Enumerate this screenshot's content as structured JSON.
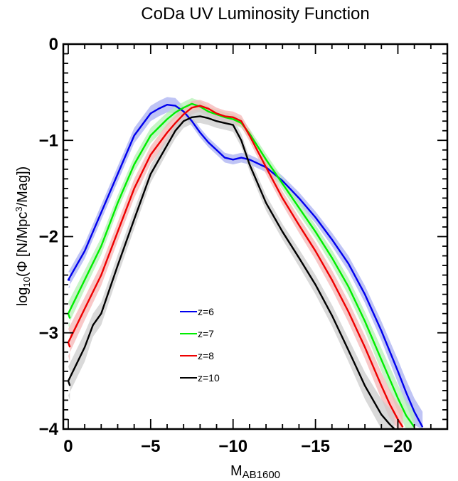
{
  "chart_data": {
    "type": "line",
    "title": "CoDa UV Luminosity Function",
    "xlabel": {
      "base": "M",
      "sub": "AB1600"
    },
    "ylabel": {
      "pre": "log",
      "sub": "10",
      "mid": "(Φ [N/Mpc",
      "sup": "3",
      "post": "/Mag])"
    },
    "xlim": [
      0.3,
      -23
    ],
    "ylim": [
      -4,
      0
    ],
    "x_ticks": [
      0,
      -5,
      -10,
      -15,
      -20
    ],
    "x_tick_labels": [
      "0",
      "−5",
      "−10",
      "−15",
      "−20"
    ],
    "y_ticks": [
      0,
      -1,
      -2,
      -3,
      -4
    ],
    "y_tick_labels": [
      "0",
      "−1",
      "−2",
      "−3",
      "−4"
    ],
    "grid": false,
    "legend_position": "center-left",
    "series": [
      {
        "name": "z=6",
        "color": "#0000ee",
        "band_color": "#aab0f2",
        "x": [
          -0.1,
          0,
          -1,
          -2,
          -3,
          -4,
          -5,
          -5.5,
          -6,
          -6.5,
          -7,
          -7.5,
          -8,
          -8.5,
          -9,
          -9.5,
          -10,
          -10.5,
          -11,
          -12,
          -13,
          -14,
          -15,
          -16,
          -17,
          -18,
          -19,
          -20,
          -20.5,
          -21,
          -21.5
        ],
        "y": [
          -2.45,
          -2.45,
          -2.15,
          -1.75,
          -1.35,
          -0.95,
          -0.72,
          -0.67,
          -0.63,
          -0.64,
          -0.7,
          -0.8,
          -0.92,
          -1.02,
          -1.1,
          -1.18,
          -1.2,
          -1.18,
          -1.2,
          -1.28,
          -1.42,
          -1.6,
          -1.8,
          -2.03,
          -2.28,
          -2.6,
          -2.98,
          -3.4,
          -3.62,
          -3.82,
          -3.98
        ],
        "band": [
          0.08,
          0.08,
          0.08,
          0.08,
          0.08,
          0.08,
          0.08,
          0.08,
          0.08,
          0.08,
          0.05,
          0.05,
          0.05,
          0.05,
          0.05,
          0.05,
          0.05,
          0.05,
          0.05,
          0.05,
          0.05,
          0.06,
          0.06,
          0.07,
          0.08,
          0.09,
          0.1,
          0.12,
          0.13,
          0.14,
          0.16
        ]
      },
      {
        "name": "z=7",
        "color": "#00ee00",
        "band_color": "#b6f0b6",
        "x": [
          -0.1,
          0,
          -1,
          -2,
          -3,
          -4,
          -5,
          -6,
          -6.5,
          -7,
          -7.5,
          -8,
          -8.5,
          -9,
          -9.5,
          -10,
          -10.5,
          -11,
          -12,
          -13,
          -14,
          -15,
          -16,
          -17,
          -18,
          -19,
          -20,
          -20.5,
          -21
        ],
        "y": [
          -2.85,
          -2.8,
          -2.45,
          -2.1,
          -1.65,
          -1.25,
          -0.95,
          -0.78,
          -0.71,
          -0.66,
          -0.62,
          -0.65,
          -0.7,
          -0.73,
          -0.76,
          -0.78,
          -0.82,
          -0.93,
          -1.2,
          -1.45,
          -1.7,
          -1.95,
          -2.22,
          -2.52,
          -2.88,
          -3.28,
          -3.68,
          -3.86,
          -3.98
        ],
        "band": [
          0.12,
          0.12,
          0.1,
          0.09,
          0.08,
          0.08,
          0.08,
          0.07,
          0.06,
          0.06,
          0.06,
          0.06,
          0.05,
          0.05,
          0.05,
          0.05,
          0.05,
          0.05,
          0.06,
          0.06,
          0.07,
          0.07,
          0.08,
          0.09,
          0.1,
          0.12,
          0.14,
          0.15,
          0.16
        ]
      },
      {
        "name": "z=8",
        "color": "#ee0000",
        "band_color": "#f5b6b6",
        "x": [
          -0.1,
          0,
          -1,
          -2,
          -3,
          -4,
          -5,
          -6,
          -6.5,
          -7,
          -7.5,
          -8,
          -8.5,
          -9,
          -9.5,
          -10,
          -10.5,
          -11,
          -12,
          -13,
          -14,
          -15,
          -16,
          -17,
          -18,
          -19,
          -19.5,
          -20,
          -20.3
        ],
        "y": [
          -3.15,
          -3.1,
          -2.75,
          -2.4,
          -1.95,
          -1.5,
          -1.15,
          -0.92,
          -0.82,
          -0.73,
          -0.66,
          -0.64,
          -0.67,
          -0.72,
          -0.75,
          -0.76,
          -0.8,
          -0.95,
          -1.28,
          -1.6,
          -1.88,
          -2.15,
          -2.45,
          -2.78,
          -3.15,
          -3.55,
          -3.74,
          -3.9,
          -3.98
        ],
        "band": [
          0.15,
          0.14,
          0.12,
          0.11,
          0.1,
          0.1,
          0.09,
          0.09,
          0.08,
          0.07,
          0.07,
          0.06,
          0.06,
          0.06,
          0.06,
          0.06,
          0.06,
          0.06,
          0.07,
          0.07,
          0.08,
          0.09,
          0.1,
          0.11,
          0.12,
          0.14,
          0.15,
          0.16,
          0.17
        ]
      },
      {
        "name": "z=10",
        "color": "#000000",
        "band_color": "#cccccc",
        "x": [
          -0.1,
          0,
          -1,
          -1.5,
          -2,
          -3,
          -4,
          -5,
          -6,
          -6.5,
          -7,
          -7.5,
          -8,
          -8.5,
          -9,
          -9.5,
          -10,
          -10.5,
          -11,
          -12,
          -13,
          -14,
          -15,
          -16,
          -17,
          -18,
          -19,
          -19.5,
          -19.8
        ],
        "y": [
          -3.55,
          -3.5,
          -3.15,
          -2.92,
          -2.8,
          -2.3,
          -1.82,
          -1.35,
          -1.05,
          -0.9,
          -0.8,
          -0.76,
          -0.75,
          -0.77,
          -0.8,
          -0.82,
          -0.84,
          -1.0,
          -1.25,
          -1.65,
          -1.95,
          -2.22,
          -2.5,
          -2.82,
          -3.18,
          -3.55,
          -3.85,
          -3.95,
          -4.0
        ],
        "band": [
          0.15,
          0.15,
          0.15,
          0.12,
          0.12,
          0.11,
          0.1,
          0.09,
          0.08,
          0.08,
          0.07,
          0.07,
          0.07,
          0.07,
          0.07,
          0.07,
          0.07,
          0.07,
          0.07,
          0.08,
          0.08,
          0.09,
          0.1,
          0.11,
          0.12,
          0.14,
          0.16,
          0.17,
          0.18
        ]
      }
    ]
  }
}
